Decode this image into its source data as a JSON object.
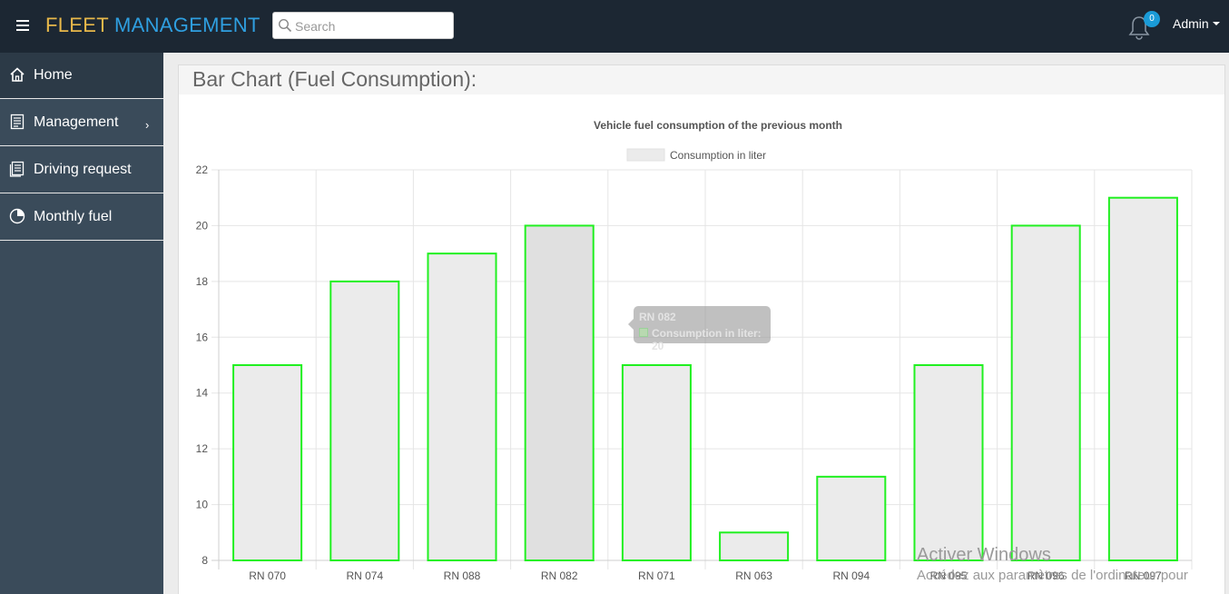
{
  "header": {
    "brand_part1": "FLEET",
    "brand_part2": "MANAGEMENT",
    "search_placeholder": "Search",
    "notification_count": "0",
    "user_label": "Admin"
  },
  "sidebar": {
    "items": [
      {
        "label": "Home",
        "icon": "home-icon"
      },
      {
        "label": "Management",
        "icon": "document-icon",
        "chevron": "›"
      },
      {
        "label": "Driving request",
        "icon": "list-document-icon"
      },
      {
        "label": "Monthly fuel",
        "icon": "pie-chart-icon"
      }
    ]
  },
  "panel": {
    "title": "Bar Chart (Fuel Consumption):"
  },
  "chart_data": {
    "type": "bar",
    "title": "Vehicle fuel consumption of the previous month",
    "categories": [
      "RN 070",
      "RN 074",
      "RN 088",
      "RN 082",
      "RN 071",
      "RN 063",
      "RN 094",
      "RN 095",
      "RN 096",
      "RN 097"
    ],
    "series": [
      {
        "name": "Consumption in liter",
        "values": [
          15,
          18,
          19,
          20,
          15,
          9,
          11,
          15,
          20,
          21
        ]
      }
    ],
    "ylim": [
      8,
      22
    ],
    "yticks": [
      8,
      10,
      12,
      14,
      16,
      18,
      20,
      22
    ],
    "grid": true,
    "legend_position": "top",
    "bar_fill": "#ebebeb",
    "bar_hover_fill": "#e0e0e0",
    "bar_border": "#21f021",
    "hovered_index": 3
  },
  "tooltip": {
    "title": "RN 082",
    "line": "Consumption in liter: 20"
  },
  "watermark": {
    "line1": "Activer Windows",
    "line2": "Accédez aux paramètres de l'ordinateur pour"
  }
}
